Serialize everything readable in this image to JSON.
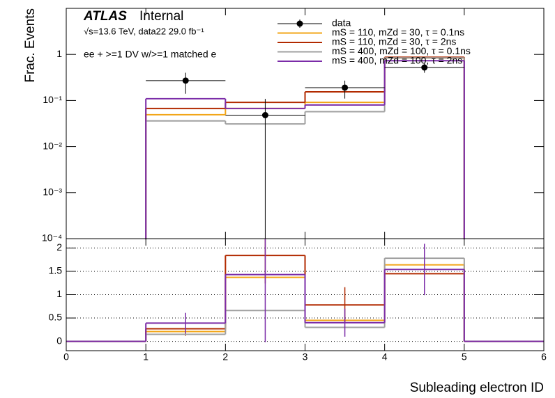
{
  "chart_data": [
    {
      "type": "histogram",
      "title": "ATLAS",
      "subtitle": "Internal",
      "annotations": [
        "√s=13.6 TeV, data22 29.0 fb⁻¹",
        "ee + >=1 DV w/>=1 matched e"
      ],
      "y_label": "Frac. Events",
      "log_y": true,
      "bins": [
        0,
        1,
        2,
        3,
        4,
        5,
        6
      ],
      "xlim": [
        0,
        6
      ],
      "xticks": [
        0,
        1,
        2,
        3,
        4,
        5,
        6
      ],
      "ylim": [
        0.0001,
        10
      ],
      "yticks": [
        {
          "value": 0.0001,
          "label": "10⁻⁴"
        },
        {
          "value": 0.001,
          "label": "10⁻³"
        },
        {
          "value": 0.01,
          "label": "10⁻²"
        },
        {
          "value": 0.1,
          "label": "10⁻¹"
        },
        1
      ],
      "data": {
        "name": "data",
        "color": "#000000",
        "values": [
          null,
          0.27,
          0.048,
          0.19,
          0.52,
          null
        ],
        "errors": [
          null,
          0.13,
          0.06,
          0.08,
          0.12,
          null
        ]
      },
      "series": [
        {
          "name": "mS = 110, mZd = 30, τ = 0.1ns",
          "color": "#f2a516",
          "values": [
            0,
            0.049,
            0.067,
            0.091,
            0.84,
            0
          ]
        },
        {
          "name": "mS = 110, mZd = 30, τ = 2ns",
          "color": "#b22a00",
          "values": [
            0,
            0.067,
            0.091,
            0.154,
            0.87,
            0
          ]
        },
        {
          "name": "mS = 400, mZd = 100, τ = 0.1ns",
          "color": "#a0a0a0",
          "values": [
            0,
            0.036,
            0.031,
            0.057,
            0.84,
            0
          ]
        },
        {
          "name": "mS = 400, mZd = 100, τ = 2ns",
          "color": "#7b2ca8",
          "values": [
            0,
            0.109,
            0.067,
            0.08,
            0.73,
            0
          ]
        }
      ]
    },
    {
      "type": "histogram",
      "x_label": "Subleading electron ID",
      "bins": [
        0,
        1,
        2,
        3,
        4,
        5,
        6
      ],
      "xlim": [
        0,
        6
      ],
      "xticks": [
        0,
        1,
        2,
        3,
        4,
        5,
        6
      ],
      "ylim": [
        -0.2,
        2.2
      ],
      "yticks": [
        0,
        0.5,
        1,
        1.5,
        2
      ],
      "grid": true,
      "series": [
        {
          "color": "#f2a516",
          "values": [
            0,
            0.21,
            1.37,
            0.45,
            1.64,
            0
          ]
        },
        {
          "color": "#b22a00",
          "values": [
            0,
            0.27,
            1.84,
            0.78,
            1.45,
            0
          ],
          "errors": [
            0,
            0.15,
            0.6,
            0.38,
            0.3,
            0
          ]
        },
        {
          "color": "#a0a0a0",
          "values": [
            0,
            0.15,
            0.66,
            0.3,
            1.78,
            0
          ]
        },
        {
          "color": "#7b2ca8",
          "values": [
            0,
            0.39,
            1.43,
            0.4,
            1.54,
            0
          ],
          "errors": [
            0,
            0.22,
            1.45,
            0.3,
            0.55,
            0
          ]
        }
      ]
    }
  ]
}
